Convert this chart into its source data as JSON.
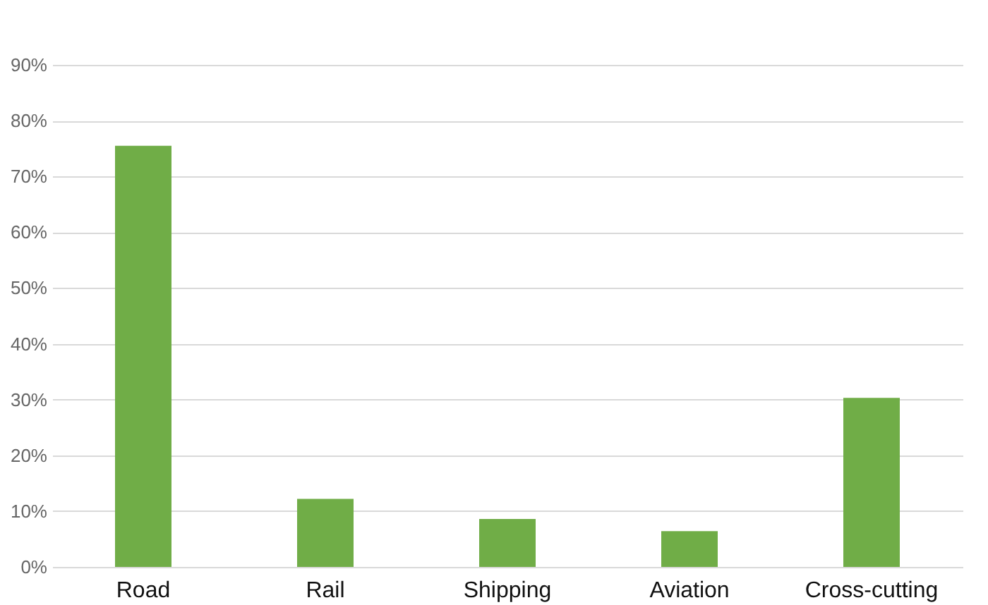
{
  "chart_data": {
    "type": "bar",
    "categories": [
      "Road",
      "Rail",
      "Shipping",
      "Aviation",
      "Cross-cutting"
    ],
    "values": [
      75.5,
      12.2,
      8.6,
      6.4,
      30.3
    ],
    "color": "#70ad47",
    "ylim": [
      0,
      90
    ],
    "yticks": [
      {
        "value": 0,
        "label": "0%"
      },
      {
        "value": 10,
        "label": "10%"
      },
      {
        "value": 20,
        "label": "20%"
      },
      {
        "value": 30,
        "label": "30%"
      },
      {
        "value": 40,
        "label": "40%"
      },
      {
        "value": 50,
        "label": "50%"
      },
      {
        "value": 60,
        "label": "60%"
      },
      {
        "value": 70,
        "label": "70%"
      },
      {
        "value": 80,
        "label": "80%"
      },
      {
        "value": 90,
        "label": "90%"
      }
    ],
    "grid": "y"
  }
}
